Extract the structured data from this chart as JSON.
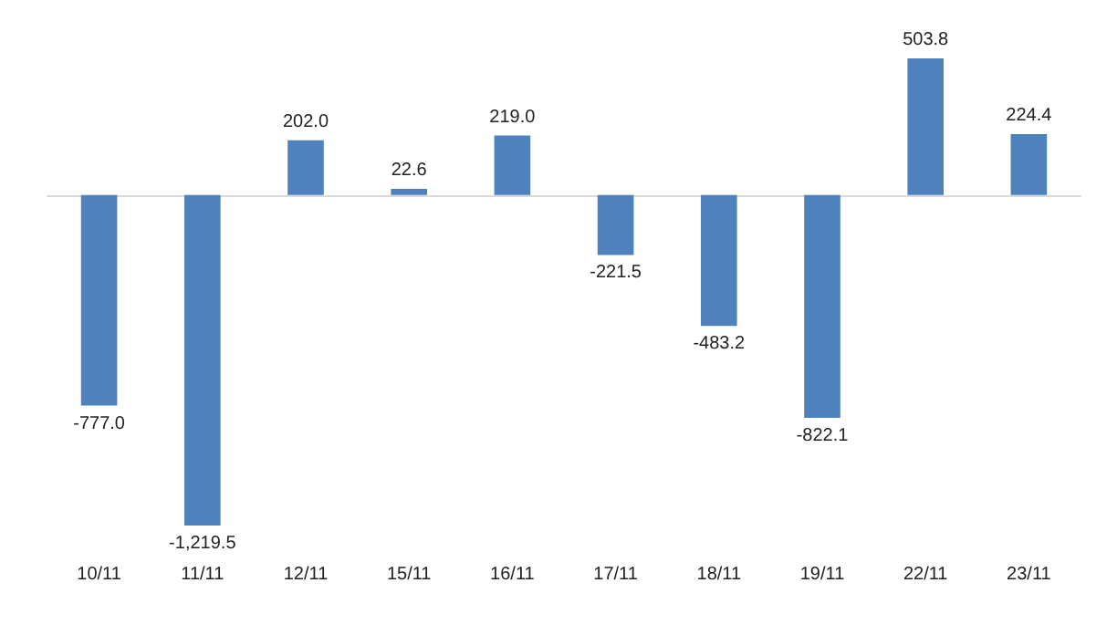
{
  "chart_data": {
    "type": "bar",
    "categories": [
      "10/11",
      "11/11",
      "12/11",
      "15/11",
      "16/11",
      "17/11",
      "18/11",
      "19/11",
      "22/11",
      "23/11"
    ],
    "values": [
      -777.0,
      -1219.5,
      202.0,
      22.6,
      219.0,
      -221.5,
      -483.2,
      -822.1,
      503.8,
      224.4
    ],
    "value_labels": [
      "-777.0",
      "-1,219.5",
      "202.0",
      "22.6",
      "219.0",
      "-221.5",
      "-483.2",
      "-822.1",
      "503.8",
      "224.4"
    ],
    "color": "#4f81bd"
  }
}
